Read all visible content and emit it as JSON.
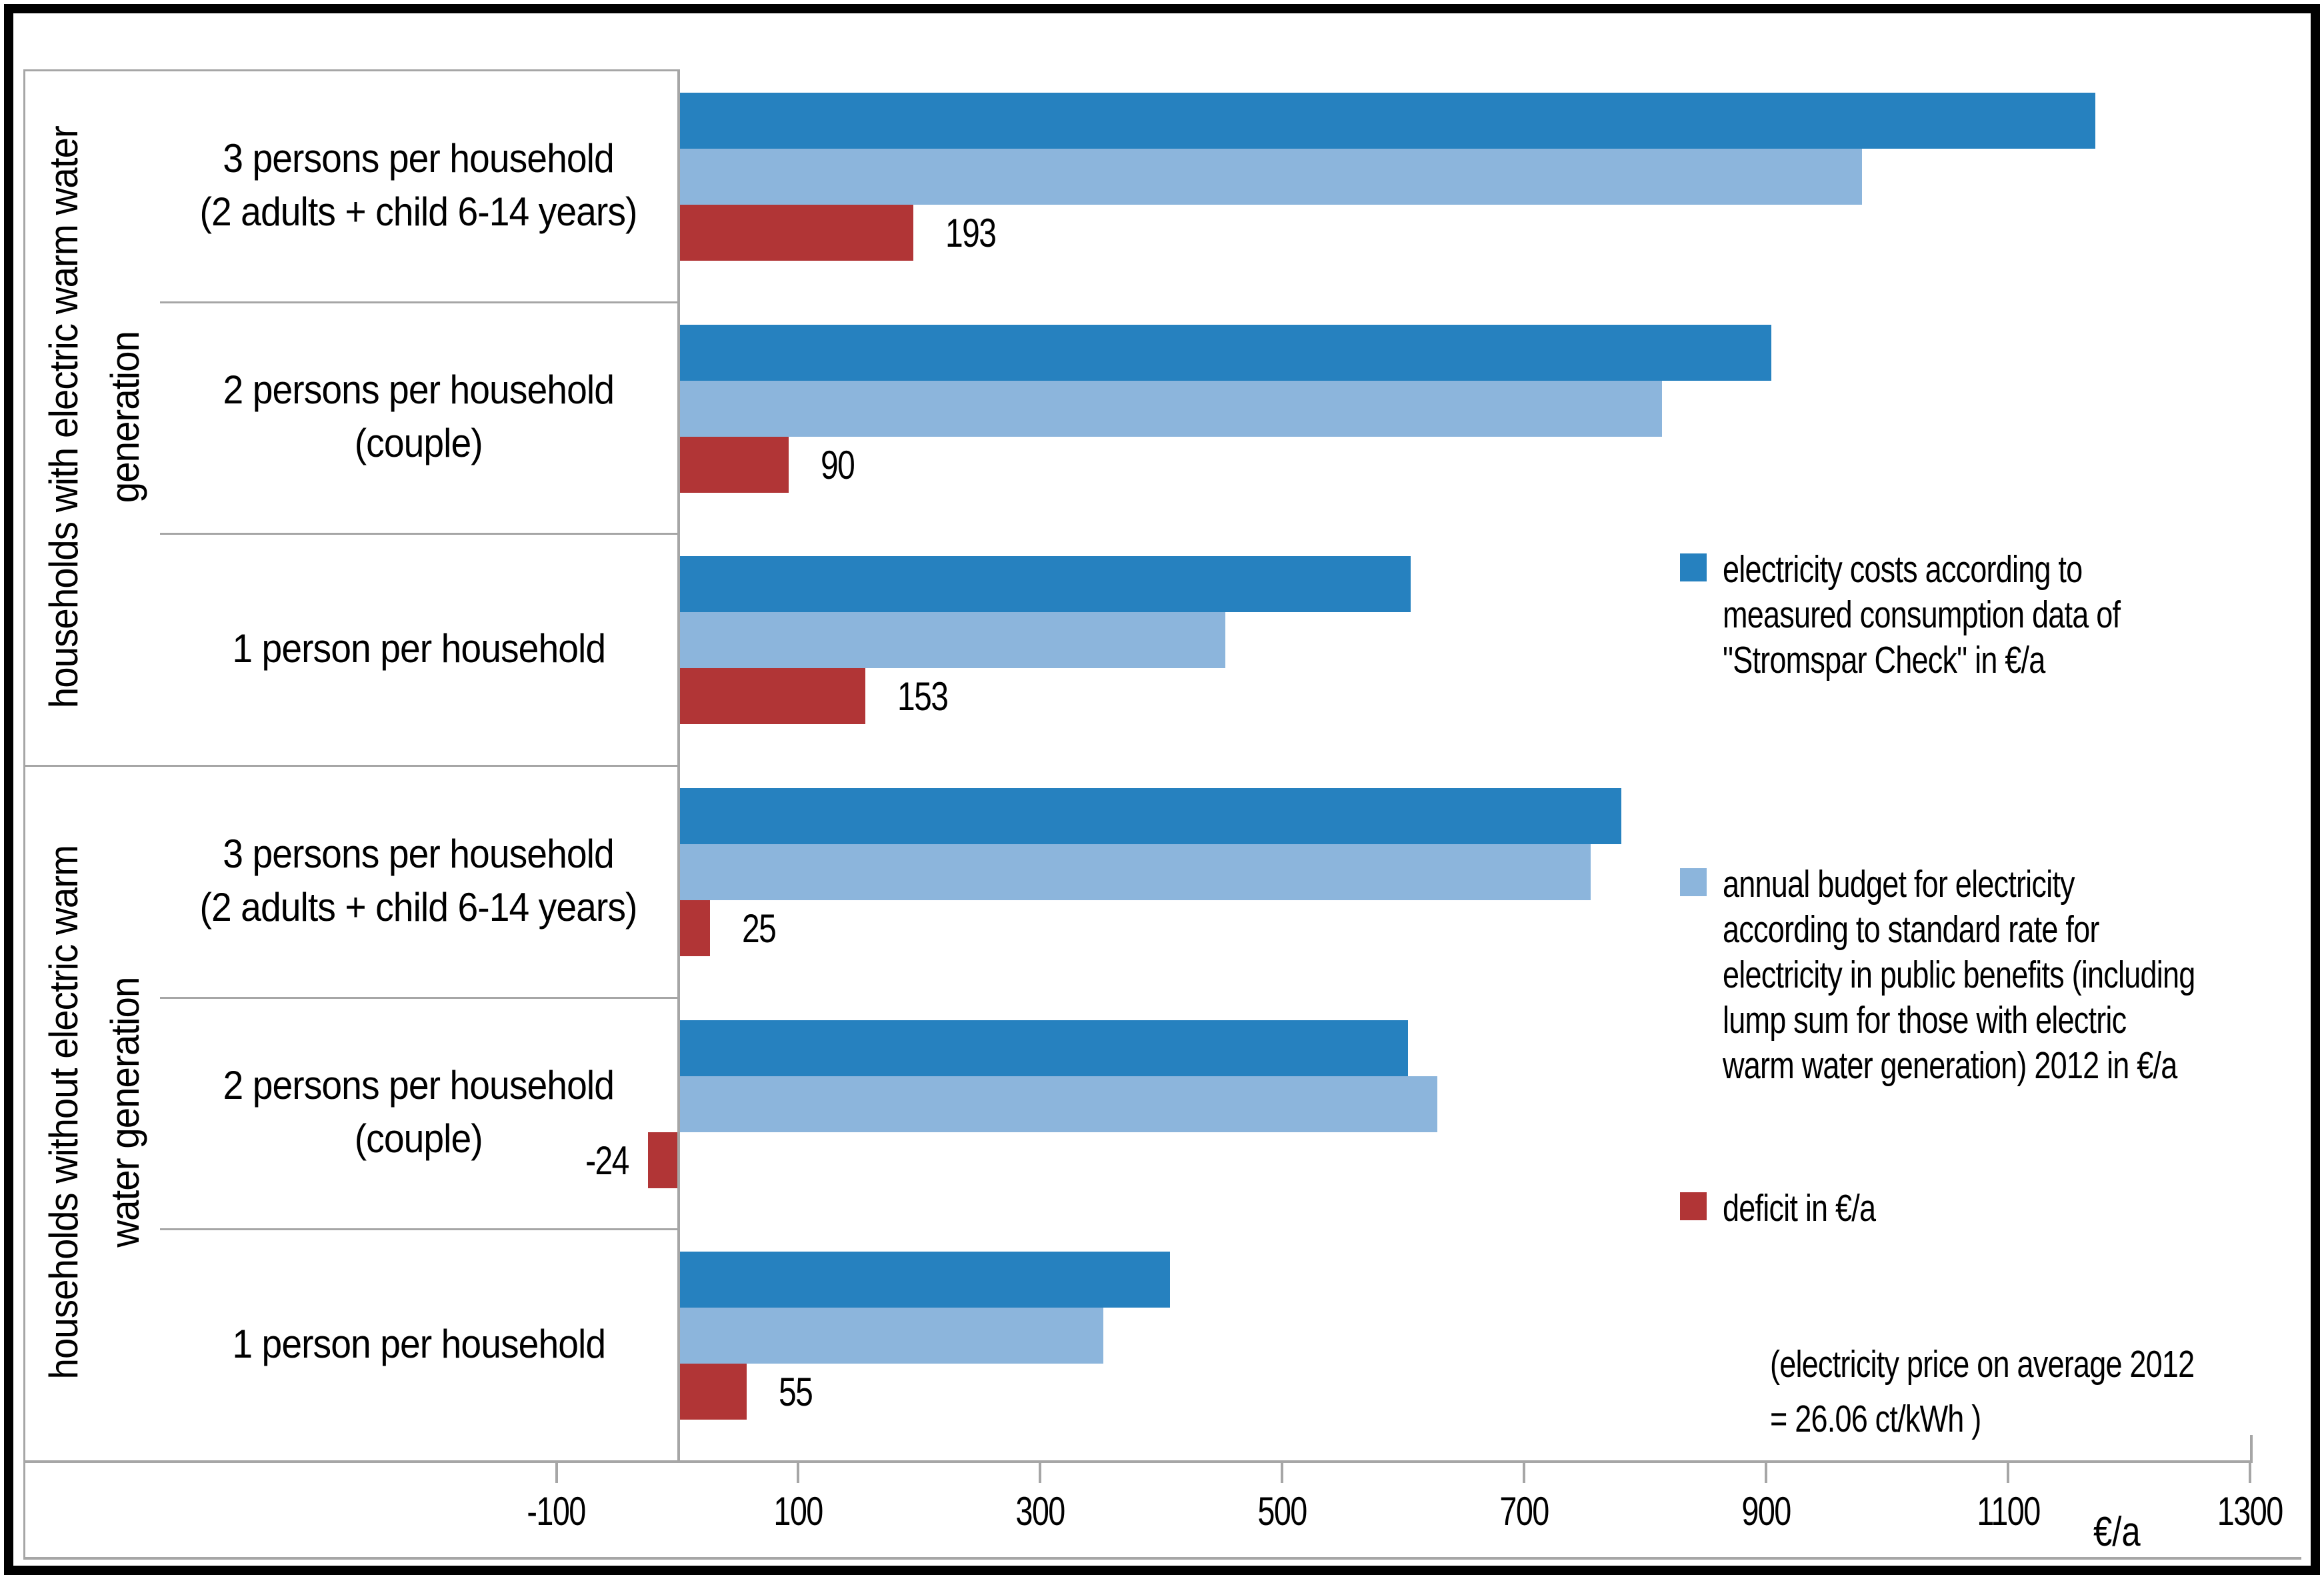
{
  "chart_data": {
    "type": "bar",
    "orientation": "horizontal",
    "title": "",
    "xlabel": "€/a",
    "x_axis_unit": "€/a",
    "x_ticks": [
      -100,
      100,
      300,
      500,
      700,
      900,
      1100,
      1300
    ],
    "xlim": [
      -100,
      1300
    ],
    "grid": false,
    "legend_position": "right",
    "group_sections": [
      {
        "label": "households with electric warm water generation",
        "label_lines": [
          "households with electric warm water",
          "generation"
        ],
        "row_indexes": [
          0,
          1,
          2
        ]
      },
      {
        "label": "households without electric warm water generation",
        "label_lines": [
          "households without electric warm",
          "water generation"
        ],
        "row_indexes": [
          3,
          4,
          5
        ]
      }
    ],
    "categories": [
      {
        "label": "3 persons per household (2 adults + child 6-14 years)",
        "lines": [
          "3 persons per household",
          "(2 adults + child 6-14 years)"
        ]
      },
      {
        "label": "2 persons per household (couple)",
        "lines": [
          "2 persons per household",
          "(couple)"
        ]
      },
      {
        "label": "1 person per household",
        "lines": [
          "1 person per household"
        ]
      },
      {
        "label": "3 persons per household (2 adults + child 6-14 years)",
        "lines": [
          "3 persons per household",
          "(2 adults + child 6-14 years)"
        ]
      },
      {
        "label": "2 persons per household (couple)",
        "lines": [
          "2 persons per household",
          "(couple)"
        ]
      },
      {
        "label": "1 person per household",
        "lines": [
          "1 person per household"
        ]
      }
    ],
    "series": [
      {
        "name": "electricity costs according to measured consumption data of \"Stromspar Check\" in €/a",
        "legend_lines": [
          "electricity costs according to",
          "measured consumption data of",
          "\"Stromspar Check\" in €/a"
        ],
        "color": "#2681BF",
        "values": [
          1170,
          902,
          604,
          778,
          602,
          405
        ],
        "data_labels": false
      },
      {
        "name": "annual budget for electricity according to standard rate for electricity in public benefits (including lump sum for those with electric warm water generation) 2012 in €/a",
        "legend_lines": [
          "annual budget for electricity",
          "according to standard rate for",
          "electricity in public benefits (including",
          "lump sum for those with electric",
          "warm water generation) 2012 in €/a"
        ],
        "color": "#8CB5DC",
        "values": [
          977,
          812,
          451,
          753,
          626,
          350
        ],
        "data_labels": false
      },
      {
        "name": "deficit in €/a",
        "legend_lines": [
          "deficit in €/a"
        ],
        "color": "#B13536",
        "values": [
          193,
          90,
          153,
          25,
          -24,
          55
        ],
        "data_labels": true
      }
    ],
    "note_lines": [
      "(electricity price on average 2012",
      "= 26.06 ct/kWh )"
    ],
    "axis_color": "#a6a6a6",
    "text_color": "#000000"
  }
}
